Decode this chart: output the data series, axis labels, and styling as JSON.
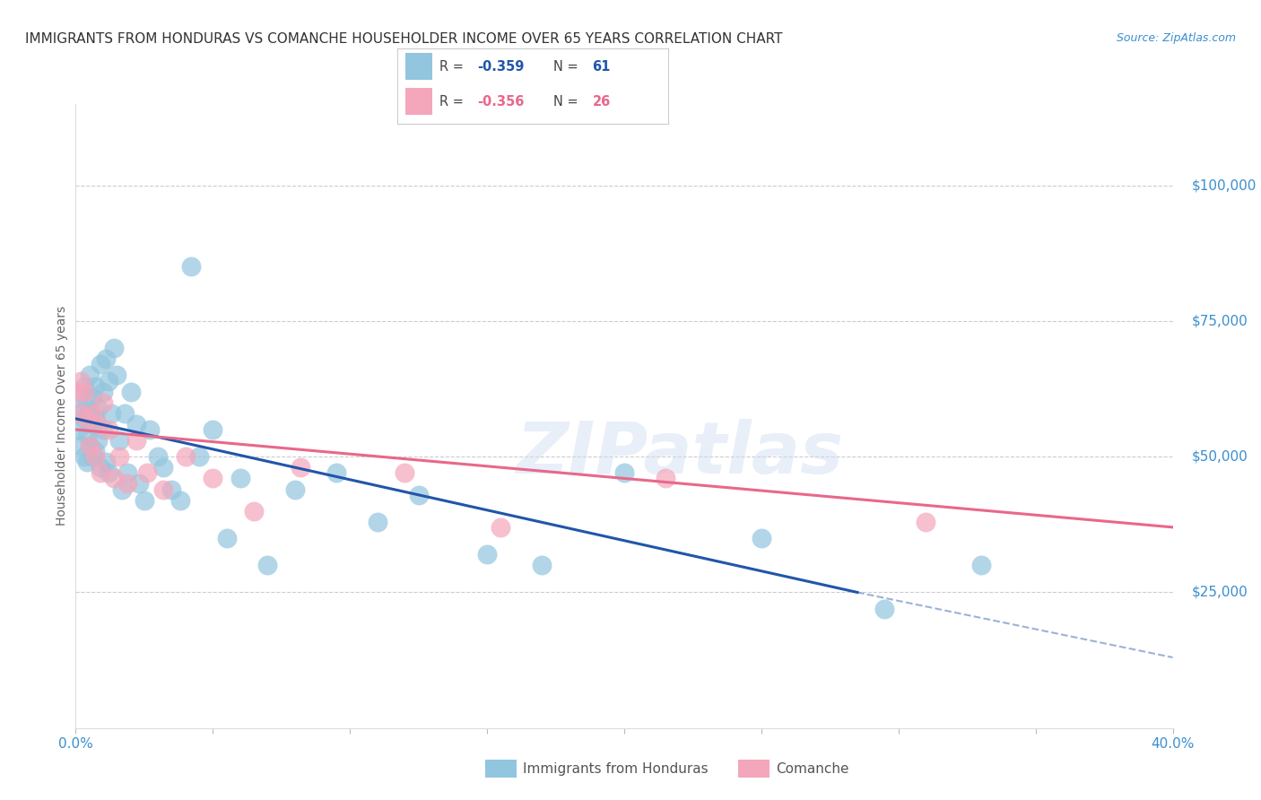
{
  "title": "IMMIGRANTS FROM HONDURAS VS COMANCHE HOUSEHOLDER INCOME OVER 65 YEARS CORRELATION CHART",
  "source": "Source: ZipAtlas.com",
  "ylabel": "Householder Income Over 65 years",
  "ylabel_right_ticks": [
    "$100,000",
    "$75,000",
    "$50,000",
    "$25,000"
  ],
  "ylabel_right_values": [
    100000,
    75000,
    50000,
    25000
  ],
  "xlim": [
    0.0,
    0.4
  ],
  "ylim": [
    0,
    115000
  ],
  "legend_blue_R": "-0.359",
  "legend_blue_N": "61",
  "legend_pink_R": "-0.356",
  "legend_pink_N": "26",
  "legend_blue_label": "Immigrants from Honduras",
  "legend_pink_label": "Comanche",
  "watermark": "ZIPatlas",
  "blue_color": "#92c5de",
  "pink_color": "#f4a6bb",
  "line_blue": "#2255aa",
  "line_pink": "#e8688a",
  "blue_scatter_x": [
    0.001,
    0.001,
    0.002,
    0.002,
    0.003,
    0.003,
    0.003,
    0.004,
    0.004,
    0.004,
    0.005,
    0.005,
    0.005,
    0.006,
    0.006,
    0.006,
    0.007,
    0.007,
    0.007,
    0.008,
    0.008,
    0.009,
    0.009,
    0.01,
    0.01,
    0.011,
    0.011,
    0.012,
    0.012,
    0.013,
    0.014,
    0.015,
    0.016,
    0.017,
    0.018,
    0.019,
    0.02,
    0.022,
    0.023,
    0.025,
    0.027,
    0.03,
    0.032,
    0.035,
    0.038,
    0.042,
    0.045,
    0.05,
    0.055,
    0.06,
    0.07,
    0.08,
    0.095,
    0.11,
    0.125,
    0.15,
    0.17,
    0.2,
    0.25,
    0.295,
    0.33
  ],
  "blue_scatter_y": [
    55000,
    61000,
    58000,
    52000,
    63000,
    57000,
    50000,
    60000,
    54000,
    49000,
    65000,
    58000,
    52000,
    61000,
    56000,
    50000,
    63000,
    57000,
    51000,
    59000,
    53000,
    67000,
    48000,
    62000,
    55000,
    68000,
    49000,
    64000,
    47000,
    58000,
    70000,
    65000,
    53000,
    44000,
    58000,
    47000,
    62000,
    56000,
    45000,
    42000,
    55000,
    50000,
    48000,
    44000,
    42000,
    85000,
    50000,
    55000,
    35000,
    46000,
    30000,
    44000,
    47000,
    38000,
    43000,
    32000,
    30000,
    47000,
    35000,
    22000,
    30000
  ],
  "pink_scatter_x": [
    0.001,
    0.002,
    0.002,
    0.003,
    0.004,
    0.005,
    0.006,
    0.007,
    0.008,
    0.009,
    0.01,
    0.012,
    0.014,
    0.016,
    0.019,
    0.022,
    0.026,
    0.032,
    0.04,
    0.05,
    0.065,
    0.082,
    0.12,
    0.155,
    0.215,
    0.31
  ],
  "pink_scatter_y": [
    62000,
    64000,
    58000,
    62000,
    57000,
    52000,
    58000,
    50000,
    56000,
    47000,
    60000,
    55000,
    46000,
    50000,
    45000,
    53000,
    47000,
    44000,
    50000,
    46000,
    40000,
    48000,
    47000,
    37000,
    46000,
    38000
  ],
  "blue_line_x": [
    0.0,
    0.285
  ],
  "blue_line_y": [
    57000,
    25000
  ],
  "pink_line_x": [
    0.0,
    0.4
  ],
  "pink_line_y": [
    55000,
    37000
  ],
  "dashed_line_x": [
    0.285,
    0.4
  ],
  "dashed_line_y": [
    25000,
    13000
  ],
  "background_color": "#ffffff",
  "grid_color": "#cccccc",
  "tick_color": "#3a8fce",
  "title_color": "#333333",
  "title_fontsize": 11,
  "axis_label_fontsize": 10
}
